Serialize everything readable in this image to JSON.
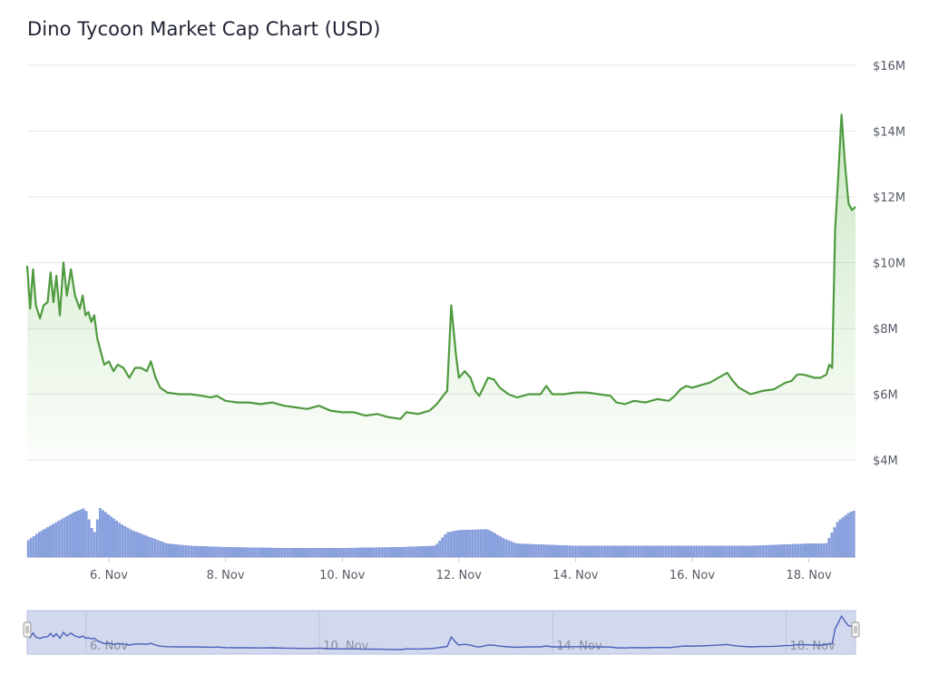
{
  "chart_data": {
    "type": "area",
    "title": "Dino Tycoon Market Cap Chart (USD)",
    "yaxis": {
      "range": [
        4,
        16
      ],
      "ticks": [
        {
          "value": 4,
          "label": "$4M"
        },
        {
          "value": 6,
          "label": "$6M"
        },
        {
          "value": 8,
          "label": "$8M"
        },
        {
          "value": 10,
          "label": "$10M"
        },
        {
          "value": 12,
          "label": "$12M"
        },
        {
          "value": 14,
          "label": "$14M"
        },
        {
          "value": 16,
          "label": "$16M"
        }
      ],
      "position": "right",
      "grid": true
    },
    "xaxis": {
      "range": [
        4.6,
        18.8
      ],
      "ticks": [
        {
          "value": 6,
          "label": "6. Nov"
        },
        {
          "value": 8,
          "label": "8. Nov"
        },
        {
          "value": 10,
          "label": "10. Nov"
        },
        {
          "value": 12,
          "label": "12. Nov"
        },
        {
          "value": 14,
          "label": "14. Nov"
        },
        {
          "value": 16,
          "label": "16. Nov"
        },
        {
          "value": 18,
          "label": "18. Nov"
        }
      ]
    },
    "series": [
      {
        "type": "area",
        "color": "#4f9a3f",
        "values": [
          [
            4.6,
            9.9
          ],
          [
            4.65,
            8.6
          ],
          [
            4.7,
            9.8
          ],
          [
            4.75,
            8.7
          ],
          [
            4.82,
            8.3
          ],
          [
            4.88,
            8.7
          ],
          [
            4.95,
            8.8
          ],
          [
            5.0,
            9.7
          ],
          [
            5.05,
            8.8
          ],
          [
            5.1,
            9.6
          ],
          [
            5.16,
            8.4
          ],
          [
            5.22,
            10.0
          ],
          [
            5.28,
            9.0
          ],
          [
            5.35,
            9.8
          ],
          [
            5.42,
            9.0
          ],
          [
            5.5,
            8.6
          ],
          [
            5.55,
            9.0
          ],
          [
            5.6,
            8.4
          ],
          [
            5.65,
            8.5
          ],
          [
            5.7,
            8.2
          ],
          [
            5.75,
            8.4
          ],
          [
            5.8,
            7.7
          ],
          [
            5.86,
            7.3
          ],
          [
            5.92,
            6.9
          ],
          [
            6.0,
            7.0
          ],
          [
            6.08,
            6.7
          ],
          [
            6.15,
            6.9
          ],
          [
            6.25,
            6.8
          ],
          [
            6.35,
            6.5
          ],
          [
            6.45,
            6.8
          ],
          [
            6.55,
            6.8
          ],
          [
            6.65,
            6.7
          ],
          [
            6.72,
            7.0
          ],
          [
            6.8,
            6.5
          ],
          [
            6.88,
            6.2
          ],
          [
            7.0,
            6.05
          ],
          [
            7.2,
            6.0
          ],
          [
            7.4,
            6.0
          ],
          [
            7.6,
            5.95
          ],
          [
            7.75,
            5.9
          ],
          [
            7.85,
            5.95
          ],
          [
            8.0,
            5.8
          ],
          [
            8.2,
            5.75
          ],
          [
            8.4,
            5.75
          ],
          [
            8.6,
            5.7
          ],
          [
            8.8,
            5.75
          ],
          [
            9.0,
            5.65
          ],
          [
            9.2,
            5.6
          ],
          [
            9.4,
            5.55
          ],
          [
            9.6,
            5.65
          ],
          [
            9.8,
            5.5
          ],
          [
            10.0,
            5.45
          ],
          [
            10.2,
            5.45
          ],
          [
            10.4,
            5.35
          ],
          [
            10.6,
            5.4
          ],
          [
            10.8,
            5.3
          ],
          [
            11.0,
            5.25
          ],
          [
            11.1,
            5.45
          ],
          [
            11.3,
            5.4
          ],
          [
            11.5,
            5.5
          ],
          [
            11.62,
            5.7
          ],
          [
            11.75,
            6.0
          ],
          [
            11.8,
            6.1
          ],
          [
            11.87,
            8.7
          ],
          [
            11.95,
            7.2
          ],
          [
            12.0,
            6.5
          ],
          [
            12.1,
            6.7
          ],
          [
            12.2,
            6.5
          ],
          [
            12.28,
            6.1
          ],
          [
            12.35,
            5.95
          ],
          [
            12.42,
            6.2
          ],
          [
            12.5,
            6.5
          ],
          [
            12.6,
            6.45
          ],
          [
            12.7,
            6.2
          ],
          [
            12.85,
            6.0
          ],
          [
            13.0,
            5.9
          ],
          [
            13.2,
            6.0
          ],
          [
            13.4,
            6.0
          ],
          [
            13.5,
            6.25
          ],
          [
            13.6,
            6.0
          ],
          [
            13.8,
            6.0
          ],
          [
            14.0,
            6.05
          ],
          [
            14.2,
            6.05
          ],
          [
            14.4,
            6.0
          ],
          [
            14.6,
            5.95
          ],
          [
            14.7,
            5.75
          ],
          [
            14.85,
            5.7
          ],
          [
            15.0,
            5.8
          ],
          [
            15.2,
            5.75
          ],
          [
            15.4,
            5.85
          ],
          [
            15.6,
            5.8
          ],
          [
            15.7,
            5.95
          ],
          [
            15.8,
            6.15
          ],
          [
            15.9,
            6.25
          ],
          [
            16.0,
            6.2
          ],
          [
            16.1,
            6.25
          ],
          [
            16.2,
            6.3
          ],
          [
            16.3,
            6.35
          ],
          [
            16.4,
            6.45
          ],
          [
            16.5,
            6.55
          ],
          [
            16.6,
            6.65
          ],
          [
            16.7,
            6.4
          ],
          [
            16.8,
            6.2
          ],
          [
            17.0,
            6.0
          ],
          [
            17.2,
            6.1
          ],
          [
            17.4,
            6.15
          ],
          [
            17.6,
            6.35
          ],
          [
            17.7,
            6.4
          ],
          [
            17.8,
            6.6
          ],
          [
            17.9,
            6.6
          ],
          [
            18.0,
            6.55
          ],
          [
            18.1,
            6.5
          ],
          [
            18.2,
            6.5
          ],
          [
            18.3,
            6.6
          ],
          [
            18.35,
            6.9
          ],
          [
            18.4,
            6.8
          ],
          [
            18.45,
            11.0
          ],
          [
            18.5,
            12.5
          ],
          [
            18.56,
            14.5
          ],
          [
            18.62,
            13.0
          ],
          [
            18.68,
            11.8
          ],
          [
            18.74,
            11.6
          ],
          [
            18.8,
            11.7
          ]
        ]
      },
      {
        "type": "column",
        "color": "#8aa2e0",
        "values": [
          [
            4.6,
            0.35
          ],
          [
            4.8,
            0.55
          ],
          [
            5.0,
            0.7
          ],
          [
            5.2,
            0.85
          ],
          [
            5.4,
            1.0
          ],
          [
            5.6,
            1.1
          ],
          [
            5.75,
            0.5
          ],
          [
            5.85,
            1.1
          ],
          [
            6.0,
            0.95
          ],
          [
            6.2,
            0.75
          ],
          [
            6.4,
            0.6
          ],
          [
            6.6,
            0.5
          ],
          [
            6.8,
            0.4
          ],
          [
            7.0,
            0.3
          ],
          [
            7.4,
            0.25
          ],
          [
            8.0,
            0.22
          ],
          [
            9.0,
            0.2
          ],
          [
            10.0,
            0.2
          ],
          [
            11.0,
            0.22
          ],
          [
            11.6,
            0.25
          ],
          [
            11.8,
            0.55
          ],
          [
            12.0,
            0.6
          ],
          [
            12.5,
            0.62
          ],
          [
            12.8,
            0.4
          ],
          [
            13.0,
            0.3
          ],
          [
            14.0,
            0.25
          ],
          [
            15.0,
            0.25
          ],
          [
            16.0,
            0.25
          ],
          [
            17.0,
            0.25
          ],
          [
            18.0,
            0.3
          ],
          [
            18.3,
            0.3
          ],
          [
            18.5,
            0.8
          ],
          [
            18.7,
            1.0
          ],
          [
            18.8,
            1.05
          ]
        ]
      }
    ],
    "legend": "none",
    "navigator": {
      "ticks": [
        {
          "value": 6,
          "label": "6. Nov"
        },
        {
          "value": 10,
          "label": "10. Nov"
        },
        {
          "value": 14,
          "label": "14. Nov"
        },
        {
          "value": 18,
          "label": "18. Nov"
        }
      ],
      "line_color": "#4a60b8",
      "mask_color": "#d2d8ee"
    }
  }
}
